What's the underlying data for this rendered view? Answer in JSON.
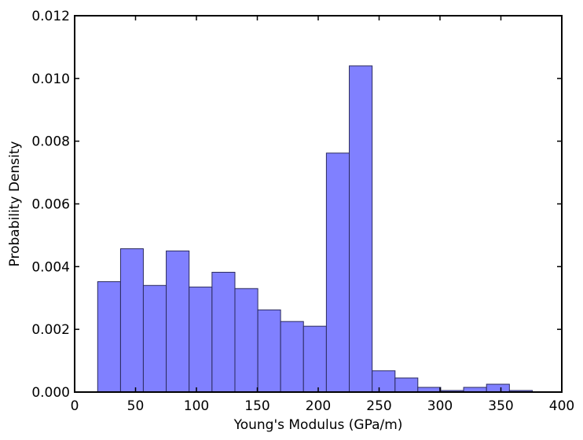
{
  "chart_data": {
    "type": "bar",
    "title": "",
    "xlabel": "Young's Modulus (GPa/m)",
    "ylabel": "Probability Density",
    "xlim": [
      0,
      400
    ],
    "ylim": [
      0,
      0.012
    ],
    "x_ticks": [
      0,
      50,
      100,
      150,
      200,
      250,
      300,
      350,
      400
    ],
    "y_ticks": [
      0.0,
      0.002,
      0.004,
      0.006,
      0.008,
      0.01,
      0.012
    ],
    "x_tick_labels": [
      "0",
      "50",
      "100",
      "150",
      "200",
      "250",
      "300",
      "350",
      "400"
    ],
    "y_tick_labels": [
      "0.000",
      "0.002",
      "0.004",
      "0.006",
      "0.008",
      "0.010",
      "0.012"
    ],
    "grid": false,
    "bar_color": "#8080ff",
    "bin_edges": [
      18.9,
      37.7,
      56.4,
      75.2,
      94.0,
      112.8,
      131.6,
      150.4,
      169.1,
      187.9,
      206.7,
      225.5,
      244.3,
      263.1,
      281.8,
      300.6,
      319.4,
      338.2,
      357.0,
      375.8
    ],
    "values": [
      0.00352,
      0.00457,
      0.0034,
      0.0045,
      0.00335,
      0.00382,
      0.0033,
      0.00262,
      0.00225,
      0.0021,
      0.00762,
      0.0104,
      0.00068,
      0.00045,
      0.00015,
      5e-05,
      0.00015,
      0.00025,
      5e-05
    ]
  }
}
